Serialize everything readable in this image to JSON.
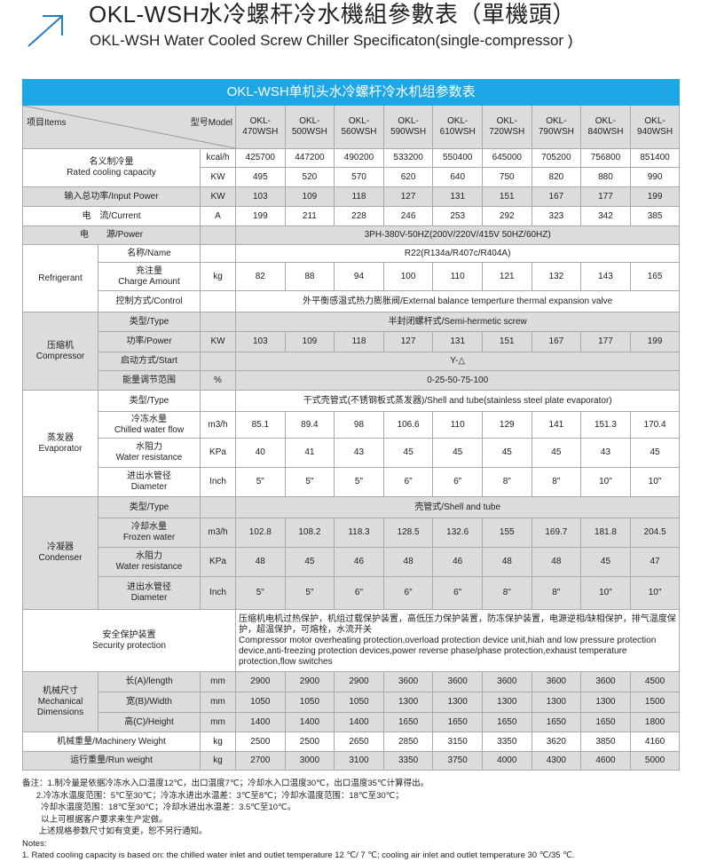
{
  "header": {
    "title_cn": "OKL-WSH水冷螺杆冷水機組參數表（單機頭）",
    "title_en": "OKL-WSH Water Cooled Screw Chiller Specificaton(single-compressor )",
    "accent": "#1ea7e6",
    "icon": "arrow-up-right-icon"
  },
  "table": {
    "title": "OKL-WSH单机头水冷螺杆冷水机组参数表",
    "items_label": "项目Items",
    "model_label": "型号Model",
    "models": [
      "OKL-\n470WSH",
      "OKL-\n500WSH",
      "OKL-\n560WSH",
      "OKL-\n590WSH",
      "OKL-\n610WSH",
      "OKL-\n720WSH",
      "OKL-\n790WSH",
      "OKL-\n840WSH",
      "OKL-\n940WSH"
    ],
    "rows": [
      {
        "group": "名义制冷量\nRated cooling capacity",
        "group_rows": 2,
        "group_full": true,
        "unit": "kcal/h",
        "values": [
          "425700",
          "447200",
          "490200",
          "533200",
          "550400",
          "645000",
          "705200",
          "756800",
          "851400"
        ],
        "h": 21
      },
      {
        "unit": "KW",
        "values": [
          "495",
          "520",
          "570",
          "620",
          "640",
          "750",
          "820",
          "880",
          "990"
        ],
        "h": 22
      },
      {
        "label": "输入总功率/Input Power",
        "full": true,
        "unit": "KW",
        "values": [
          "103",
          "109",
          "118",
          "127",
          "131",
          "151",
          "167",
          "177",
          "199"
        ],
        "shade": true,
        "h": 22
      },
      {
        "label": "电　流/Current",
        "full": true,
        "unit": "A",
        "values": [
          "199",
          "211",
          "228",
          "246",
          "253",
          "292",
          "323",
          "342",
          "385"
        ],
        "h": 22
      },
      {
        "label": "电　　源/Power",
        "full": true,
        "unit": "",
        "span": "3PH-380V-50HZ(200V/220V/415V  50HZ/60HZ)",
        "shade": true,
        "h": 21
      },
      {
        "group": "Refrigerant",
        "group_rows": 3,
        "label": "名称/Name",
        "unit": "",
        "span": "R22(R134a/R407c/R404A)",
        "h": 20
      },
      {
        "label": "充注量\nCharge Amount",
        "unit": "kg",
        "values": [
          "82",
          "88",
          "94",
          "100",
          "110",
          "121",
          "132",
          "143",
          "165"
        ],
        "h": 32
      },
      {
        "label": "控制方式/Control",
        "unit": "",
        "span": "外平衡感温式热力膨胀阀/External balance temperture thermal expansion valve",
        "h": 24
      },
      {
        "group": "压缩机\nCompressor",
        "group_rows": 4,
        "label": "类型/Type",
        "unit": "",
        "span": "半封闭螺杆式/Semi-hermetic screw",
        "shade": true,
        "h": 22
      },
      {
        "label": "功率/Power",
        "unit": "KW",
        "values": [
          "103",
          "109",
          "118",
          "127",
          "131",
          "151",
          "167",
          "177",
          "199"
        ],
        "shade": true,
        "h": 23
      },
      {
        "label": "启动方式/Start",
        "unit": "",
        "span": "Y-△",
        "shade": true,
        "h": 21
      },
      {
        "label": "能量调节范围",
        "unit": "%",
        "span": "0-25-50-75-100",
        "shade": true,
        "h": 22
      },
      {
        "group": "蒸发器\nEvaporator",
        "group_rows": 4,
        "label": "类型/Type",
        "unit": "",
        "span": "干式壳管式(不锈钢板式蒸发器)/Shell and tube(stainless steel plate evaporator)",
        "h": 24
      },
      {
        "label": "冷冻水量\nChilled water flow",
        "unit": "m3/h",
        "values": [
          "85.1",
          "89.4",
          "98",
          "106.6",
          "110",
          "129",
          "141",
          "151.3",
          "170.4"
        ],
        "h": 30
      },
      {
        "label": "水阻力\nWater resistance",
        "unit": "KPa",
        "values": [
          "40",
          "41",
          "43",
          "45",
          "45",
          "45",
          "45",
          "43",
          "45"
        ],
        "h": 33
      },
      {
        "label": "进出水管径\nDiameter",
        "unit": "Inch",
        "values": [
          "5\"",
          "5\"",
          "5\"",
          "6\"",
          "6\"",
          "8\"",
          "8\"",
          "10\"",
          "10\""
        ],
        "h": 33
      },
      {
        "group": "冷凝器\nCondenser",
        "group_rows": 4,
        "label": "类型/Type",
        "unit": "",
        "span": "壳管式/Shell and tube",
        "shade": true,
        "h": 24
      },
      {
        "label": "冷却水量\nFrozen water",
        "unit": "m3/h",
        "values": [
          "102.8",
          "108.2",
          "118.3",
          "128.5",
          "132.6",
          "155",
          "169.7",
          "181.8",
          "204.5"
        ],
        "shade": true,
        "h": 33
      },
      {
        "label": "水阻力\nWater resistance",
        "unit": "KPa",
        "values": [
          "48",
          "45",
          "46",
          "48",
          "46",
          "48",
          "48",
          "45",
          "47"
        ],
        "shade": true,
        "h": 33
      },
      {
        "label": "进出水管径\nDiameter",
        "unit": "Inch",
        "values": [
          "5\"",
          "5\"",
          "6\"",
          "6\"",
          "6\"",
          "8\"",
          "8\"",
          "10\"",
          "10\""
        ],
        "shade": true,
        "h": 37
      },
      {
        "security": true,
        "label": "安全保护装置\nSecurity protection",
        "span": "压缩机电机过热保护，机组过载保护装置，高低压力保护装置，防冻保护装置，电源逆相/缺相保护，排气温度保护，超温保护，可熔栓，水流开关\nCompressor motor overheating protection,overload protection device unit,hiah and low pressure protection device,anti-freezing protection devices,power reverse phase/phase protection,exhaust temperature protection,flow switches",
        "h": 70
      },
      {
        "group": "机械尺寸\nMechanical\nDimensions",
        "group_rows": 3,
        "label": "长(A)/length",
        "unit": "mm",
        "values": [
          "2900",
          "2900",
          "2900",
          "3600",
          "3600",
          "3600",
          "3600",
          "3600",
          "4500"
        ],
        "shade": true,
        "h": 23
      },
      {
        "label": "宽(B)/Width",
        "unit": "mm",
        "values": [
          "1050",
          "1050",
          "1050",
          "1300",
          "1300",
          "1300",
          "1300",
          "1300",
          "1500"
        ],
        "shade": true,
        "h": 23
      },
      {
        "label": "高(C)/Height",
        "unit": "mm",
        "values": [
          "1400",
          "1400",
          "1400",
          "1650",
          "1650",
          "1650",
          "1650",
          "1650",
          "1800"
        ],
        "shade": true,
        "h": 22
      },
      {
        "label": "机械重量/Machinery Weight",
        "full": true,
        "unit": "kg",
        "values": [
          "2500",
          "2500",
          "2650",
          "2850",
          "3150",
          "3350",
          "3620",
          "3850",
          "4160"
        ],
        "h": 22
      },
      {
        "label": "运行重量/Run weight",
        "full": true,
        "unit": "kg",
        "values": [
          "2700",
          "3000",
          "3100",
          "3350",
          "3750",
          "4000",
          "4300",
          "4600",
          "5000"
        ],
        "shade": true,
        "h": 21
      }
    ]
  },
  "notes": {
    "lines": [
      "备注：1.制冷量是依据冷冻水入口温度12℃，出口温度7℃；冷却水入口温度30℃，出口温度35℃计算得出。",
      "      2.冷冻水温度范围：5℃至30℃；冷冻水进出水温差：3℃至8℃；冷却水温度范围：18℃至30℃；",
      "        冷却水温度范围：18℃至30℃；冷却水进出水温差：3.5℃至10℃。",
      "        以上可根据客户要求来生产定做。",
      "       上述规格参数尺寸如有变更，恕不另行通知。",
      "Notes:",
      "1. Rated cooling capacity is based on: the chilled water inlet and outlet temperature 12 ℃/ 7 ℃; cooling air inlet and outlet temperature 30 ℃/35 ℃."
    ]
  }
}
